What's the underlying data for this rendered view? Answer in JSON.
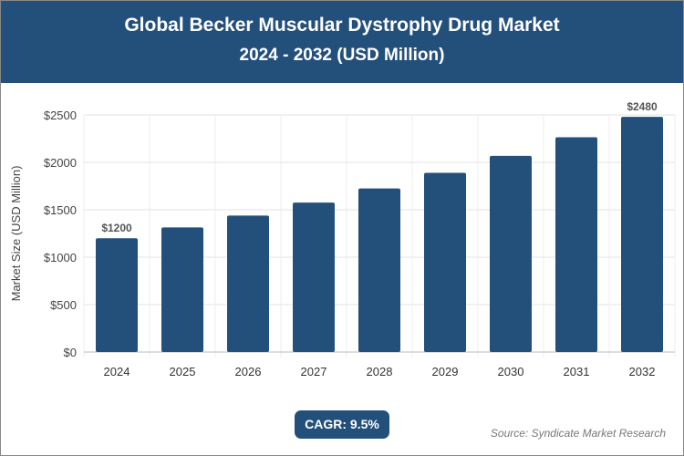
{
  "chart_data": {
    "type": "bar",
    "title": "Global Becker Muscular Dystrophy Drug Market",
    "subtitle": "2024 - 2032 (USD Million)",
    "xlabel": "",
    "ylabel": "Market Size (USD Million)",
    "categories": [
      "2024",
      "2025",
      "2026",
      "2027",
      "2028",
      "2029",
      "2030",
      "2031",
      "2032"
    ],
    "values": [
      1200,
      1314,
      1439,
      1576,
      1725,
      1889,
      2069,
      2265,
      2480
    ],
    "data_labels": {
      "0": "$1200",
      "8": "$2480"
    },
    "ylim": [
      0,
      2500
    ],
    "yticks": [
      0,
      500,
      1000,
      1500,
      2000,
      2500
    ],
    "ytick_labels": [
      "$0",
      "$500",
      "$1000",
      "$1500",
      "$2000",
      "$2500"
    ],
    "grid": true,
    "bar_color": "#23507a"
  },
  "cagr_label": "CAGR: 9.5%",
  "source": "Source: Syndicate Market Research"
}
